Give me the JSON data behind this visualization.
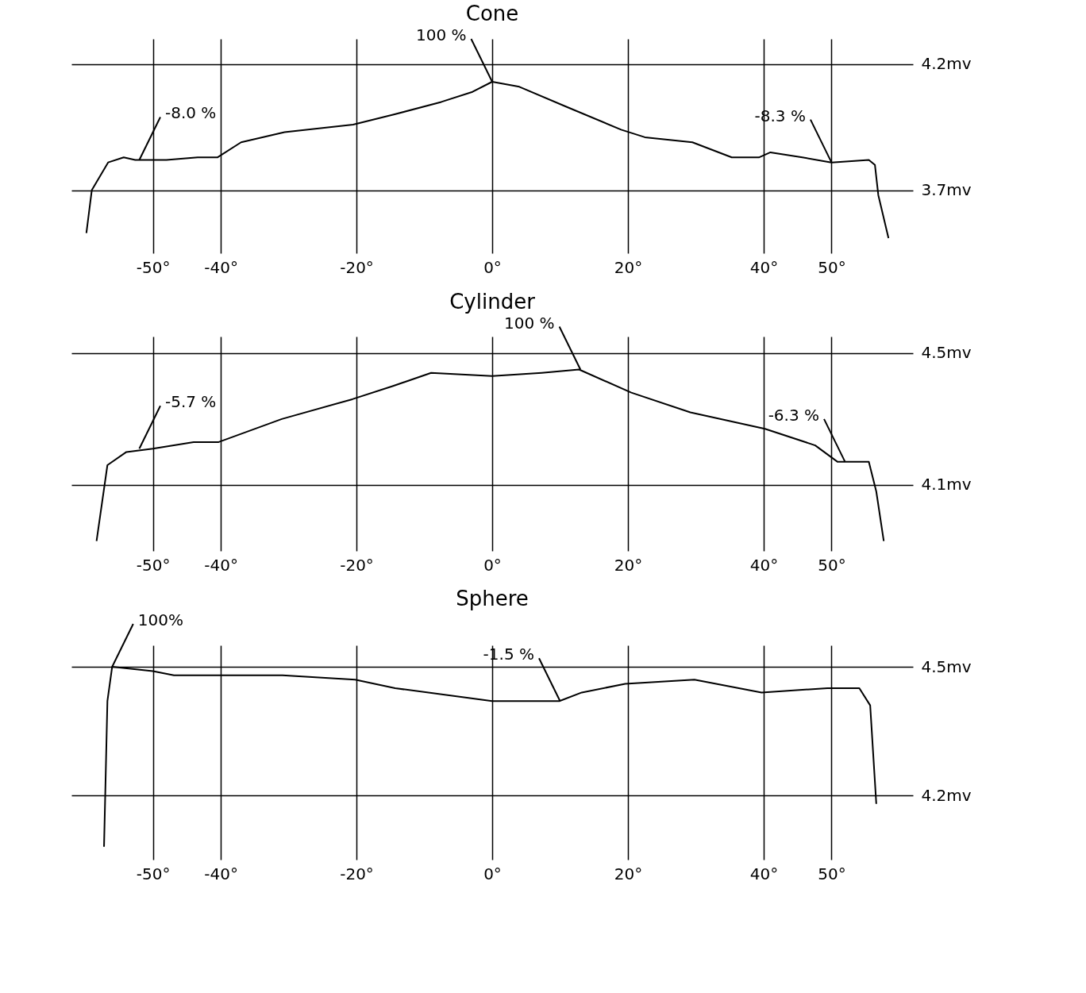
{
  "chart_data": [
    {
      "type": "line",
      "title": "Cone",
      "xlim": [
        -62,
        62
      ],
      "ylim": [
        3.45,
        4.3
      ],
      "grid": true,
      "xticks": [
        {
          "value": -50,
          "label": "-50°"
        },
        {
          "value": -40,
          "label": "-40°"
        },
        {
          "value": -20,
          "label": "-20°"
        },
        {
          "value": 0,
          "label": "0°"
        },
        {
          "value": 20,
          "label": "20°"
        },
        {
          "value": 40,
          "label": "40°"
        },
        {
          "value": 50,
          "label": "50°"
        }
      ],
      "yticks": [
        {
          "value": 3.7,
          "label": "3.7mv"
        },
        {
          "value": 4.2,
          "label": "4.2mv"
        }
      ],
      "annotations": [
        {
          "text": "100 %",
          "x": 0,
          "y": 4.13
        },
        {
          "text": "-8.0 %",
          "x": -52,
          "y": 3.82
        },
        {
          "text": "-8.3 %",
          "x": 50,
          "y": 3.81
        }
      ],
      "series": [
        {
          "color": "#000000",
          "x": [
            -59.8,
            -59,
            -56.6,
            -54.3,
            -52.6,
            -50,
            -48,
            -43.4,
            -40.5,
            -37,
            -30.6,
            -20.5,
            -14.5,
            -7.5,
            -2.9,
            0,
            4,
            11,
            19,
            22.5,
            29.5,
            35.3,
            39.3,
            41,
            45.7,
            50,
            55.5,
            56.4,
            56.9,
            58.4
          ],
          "values": [
            3.53,
            3.7,
            3.81,
            3.83,
            3.82,
            3.82,
            3.82,
            3.83,
            3.83,
            3.89,
            3.93,
            3.96,
            4.0,
            4.05,
            4.09,
            4.13,
            4.11,
            4.03,
            3.94,
            3.91,
            3.89,
            3.83,
            3.83,
            3.85,
            3.83,
            3.81,
            3.82,
            3.8,
            3.68,
            3.51
          ]
        }
      ]
    },
    {
      "type": "line",
      "title": "Cylinder",
      "xlim": [
        -62,
        62
      ],
      "ylim": [
        3.9,
        4.55
      ],
      "grid": true,
      "xticks": [
        {
          "value": -50,
          "label": "-50°"
        },
        {
          "value": -40,
          "label": "-40°"
        },
        {
          "value": -20,
          "label": "-20°"
        },
        {
          "value": 0,
          "label": "0°"
        },
        {
          "value": 20,
          "label": "20°"
        },
        {
          "value": 40,
          "label": "40°"
        },
        {
          "value": 50,
          "label": "50°"
        }
      ],
      "yticks": [
        {
          "value": 4.1,
          "label": "4.1mv"
        },
        {
          "value": 4.5,
          "label": "4.5mv"
        }
      ],
      "annotations": [
        {
          "text": "100 %",
          "x": 13,
          "y": 4.45
        },
        {
          "text": "-5.7 %",
          "x": -52,
          "y": 4.21
        },
        {
          "text": "-6.3 %",
          "x": 52,
          "y": 4.17
        }
      ],
      "series": [
        {
          "color": "#000000",
          "x": [
            -58.3,
            -56.7,
            -53.9,
            -50,
            -44,
            -40.3,
            -31,
            -20.6,
            -14.6,
            -9,
            0,
            7.3,
            12.8,
            20.5,
            29.2,
            40.2,
            47.6,
            50.9,
            55.5,
            56.6,
            57.7
          ],
          "values": [
            3.93,
            4.16,
            4.2,
            4.21,
            4.23,
            4.23,
            4.3,
            4.36,
            4.4,
            4.44,
            4.43,
            4.44,
            4.45,
            4.38,
            4.32,
            4.27,
            4.22,
            4.17,
            4.17,
            4.08,
            3.93
          ]
        }
      ]
    },
    {
      "type": "line",
      "title": "Sphere",
      "xlim": [
        -62,
        62
      ],
      "ylim": [
        4.05,
        4.55
      ],
      "grid": true,
      "xticks": [
        {
          "value": -50,
          "label": "-50°"
        },
        {
          "value": -40,
          "label": "-40°"
        },
        {
          "value": -20,
          "label": "-20°"
        },
        {
          "value": 0,
          "label": "0°"
        },
        {
          "value": 20,
          "label": "20°"
        },
        {
          "value": 40,
          "label": "40°"
        },
        {
          "value": 50,
          "label": "50°"
        }
      ],
      "yticks": [
        {
          "value": 4.2,
          "label": "4.2mv"
        },
        {
          "value": 4.5,
          "label": "4.5mv"
        }
      ],
      "annotations": [
        {
          "text": "100%",
          "x": -56,
          "y": 4.5
        },
        {
          "text": "-1.5 %",
          "x": 10,
          "y": 4.42
        }
      ],
      "series": [
        {
          "color": "#000000",
          "x": [
            -57.2,
            -56.7,
            -56,
            -50,
            -46.9,
            -40.3,
            -30.9,
            -20.2,
            -14.3,
            0,
            9.9,
            13.2,
            19.6,
            29.8,
            39.7,
            49.4,
            54.1,
            55.7,
            56.6
          ],
          "values": [
            4.08,
            4.42,
            4.5,
            4.49,
            4.48,
            4.48,
            4.48,
            4.47,
            4.45,
            4.42,
            4.42,
            4.44,
            4.46,
            4.47,
            4.44,
            4.45,
            4.45,
            4.41,
            4.18
          ]
        }
      ]
    }
  ]
}
